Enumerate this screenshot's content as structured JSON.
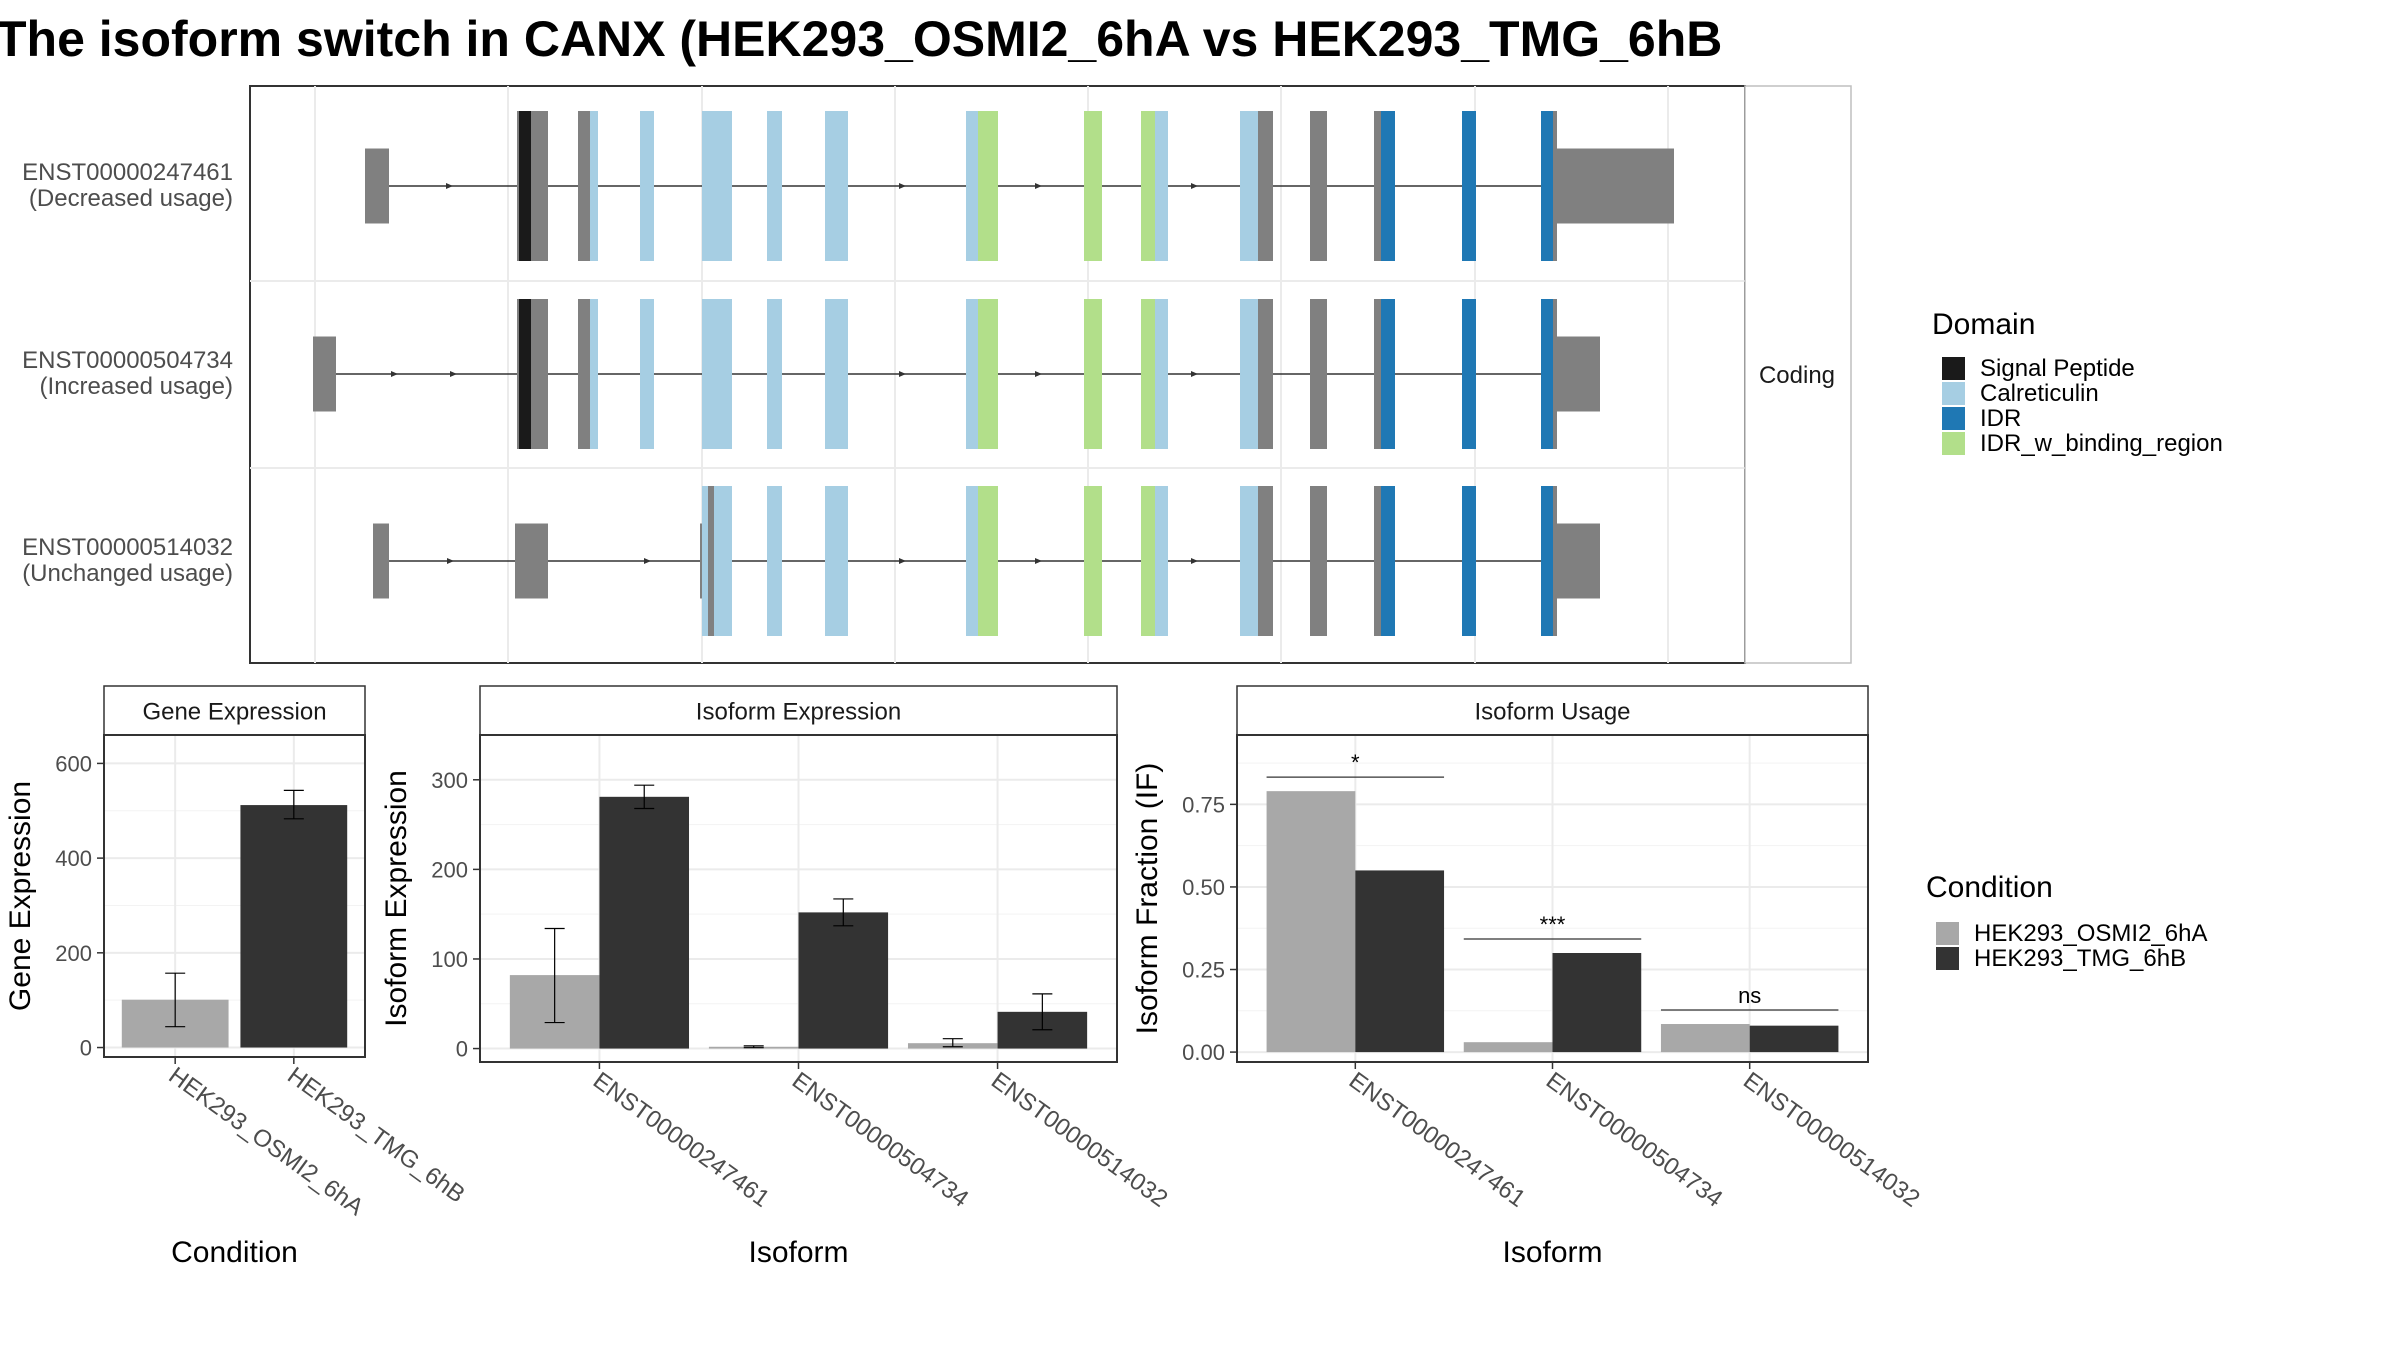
{
  "title": "The isoform switch in CANX (HEK293_OSMI2_6hA vs HEK293_TMG_6hB",
  "colors": {
    "signal_peptide": "#1a1a1a",
    "calreticulin": "#a6cee3",
    "idr": "#1f78b4",
    "idr_w_binding_region": "#b2df8a",
    "exon_gray": "#808080",
    "cond_a": "#a8a8a8",
    "cond_b": "#333333"
  },
  "structure": {
    "strip_label": "Coding",
    "isoforms": [
      {
        "id": "ENST00000247461",
        "usage": "(Decreased usage)"
      },
      {
        "id": "ENST00000504734",
        "usage": "(Increased usage)"
      },
      {
        "id": "ENST00000514032",
        "usage": "(Unchanged usage)"
      }
    ]
  },
  "domain_legend": {
    "title": "Domain",
    "items": [
      {
        "label": "Signal Peptide",
        "color": "#1a1a1a"
      },
      {
        "label": "Calreticulin",
        "color": "#a6cee3"
      },
      {
        "label": "IDR",
        "color": "#1f78b4"
      },
      {
        "label": "IDR_w_binding_region",
        "color": "#b2df8a"
      }
    ]
  },
  "condition_legend": {
    "title": "Condition",
    "items": [
      {
        "label": "HEK293_OSMI2_6hA",
        "color": "#a8a8a8"
      },
      {
        "label": "HEK293_TMG_6hB",
        "color": "#333333"
      }
    ]
  },
  "chart_data": [
    {
      "type": "bar",
      "title": "Gene Expression",
      "xlabel": "Condition",
      "ylabel": "Gene Expression",
      "categories": [
        "HEK293_OSMI2_6hA",
        "HEK293_TMG_6hB"
      ],
      "values": [
        101,
        512
      ],
      "errors": [
        [
          44,
          157
        ],
        [
          483,
          543
        ]
      ],
      "ylim": [
        -20,
        660
      ],
      "yticks": [
        0,
        200,
        400,
        600
      ]
    },
    {
      "type": "bar",
      "title": "Isoform Expression",
      "xlabel": "Isoform",
      "ylabel": "Isoform Expression",
      "categories": [
        "ENST00000247461",
        "ENST00000504734",
        "ENST00000514032"
      ],
      "series": [
        {
          "name": "HEK293_OSMI2_6hA",
          "values": [
            82,
            2,
            6
          ],
          "errors": [
            [
              29,
              134
            ],
            [
              1,
              3
            ],
            [
              2,
              11
            ]
          ]
        },
        {
          "name": "HEK293_TMG_6hB",
          "values": [
            281,
            152,
            41
          ],
          "errors": [
            [
              268,
              294
            ],
            [
              137,
              167
            ],
            [
              21,
              61
            ]
          ]
        }
      ],
      "ylim": [
        -15,
        350
      ],
      "yticks": [
        0,
        100,
        200,
        300
      ]
    },
    {
      "type": "bar",
      "title": "Isoform Usage",
      "xlabel": "Isoform",
      "ylabel": "Isoform Fraction (IF)",
      "categories": [
        "ENST00000247461",
        "ENST00000504734",
        "ENST00000514032"
      ],
      "series": [
        {
          "name": "HEK293_OSMI2_6hA",
          "values": [
            0.79,
            0.03,
            0.085
          ]
        },
        {
          "name": "HEK293_TMG_6hB",
          "values": [
            0.55,
            0.3,
            0.08
          ]
        }
      ],
      "significance": [
        "*",
        "***",
        "ns"
      ],
      "ylim": [
        -0.03,
        0.96
      ],
      "yticks": [
        0.0,
        0.25,
        0.5,
        0.75
      ],
      "yticklabels": [
        "0.00",
        "0.25",
        "0.50",
        "0.75"
      ]
    }
  ]
}
